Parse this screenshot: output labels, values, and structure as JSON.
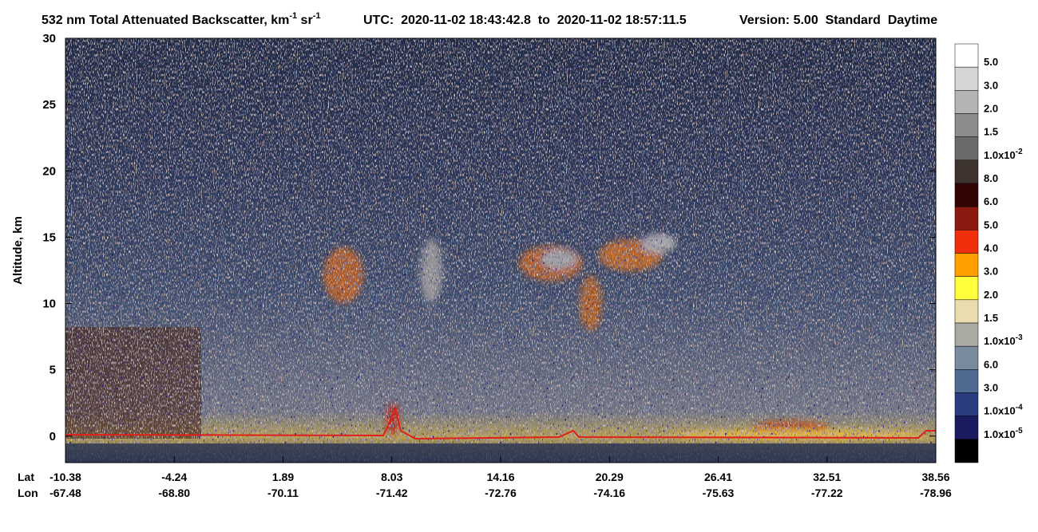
{
  "chart_data": {
    "type": "curtain",
    "title": {
      "text": "532 nm Total Attenuated Backscatter, km",
      "sup1": "-1",
      "mid": " sr",
      "sup2": "-1"
    },
    "utc": "UTC:  2020-11-02 18:43:42.8  to  2020-11-02 18:57:11.5",
    "version": "Version: 5.00  Standard  Daytime",
    "ylabel": "Altitude, km",
    "ylim": [
      -2,
      30
    ],
    "yticks": [
      0,
      5,
      10,
      15,
      20,
      25,
      30
    ],
    "x_row_labels": [
      "Lat",
      "Lon"
    ],
    "lat_labels": [
      "-10.38",
      "-4.24",
      "1.89",
      "8.03",
      "14.16",
      "20.29",
      "26.41",
      "32.51",
      "38.56"
    ],
    "lon_labels": [
      "-67.48",
      "-68.80",
      "-70.11",
      "-71.42",
      "-72.76",
      "-74.16",
      "-75.63",
      "-77.22",
      "-78.96"
    ],
    "colorbar": {
      "colors": [
        "#ffffff",
        "#d6d6d6",
        "#b4b4b4",
        "#8c8c8c",
        "#6a6a6a",
        "#3f3330",
        "#320404",
        "#8c1a10",
        "#f0300a",
        "#ffa000",
        "#ffff3c",
        "#ebdcb0",
        "#a9aba2",
        "#7b8b9e",
        "#506a92",
        "#2c3c80",
        "#1a1a60",
        "#000000"
      ],
      "labels": [
        {
          "text": "5.0"
        },
        {
          "text": "3.0"
        },
        {
          "text": "2.0"
        },
        {
          "text": "1.5"
        },
        {
          "text": "1.0x10",
          "sup": "-2"
        },
        {
          "text": "8.0"
        },
        {
          "text": "6.0"
        },
        {
          "text": "5.0"
        },
        {
          "text": "4.0"
        },
        {
          "text": "3.0"
        },
        {
          "text": "2.0"
        },
        {
          "text": "1.5"
        },
        {
          "text": "1.0x10",
          "sup": "-3"
        },
        {
          "text": "6.0"
        },
        {
          "text": "3.0"
        },
        {
          "text": "1.0x10",
          "sup": "-4"
        },
        {
          "text": "1.0x10",
          "sup": "-5"
        }
      ]
    }
  }
}
